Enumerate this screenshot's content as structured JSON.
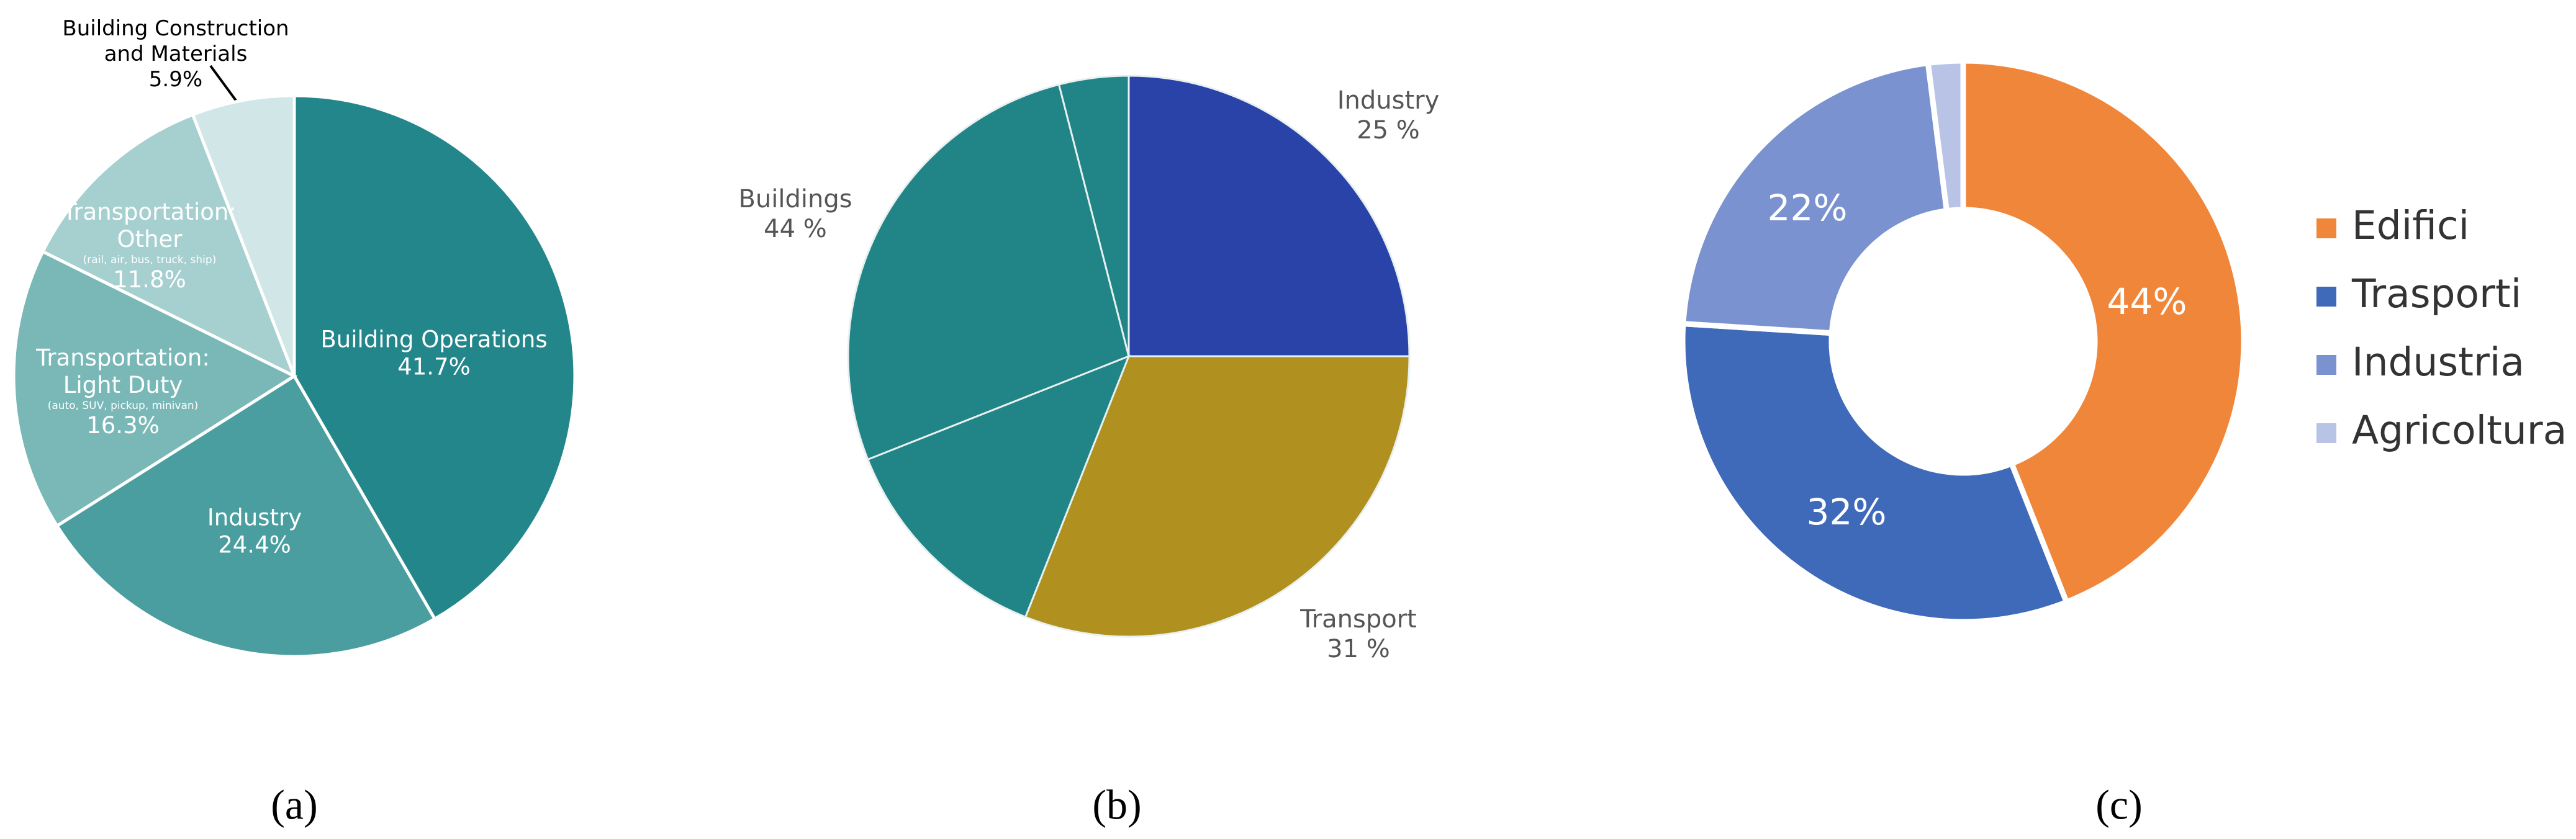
{
  "chart_data": [
    {
      "type": "pie",
      "caption": "(a)",
      "categories": [
        "Building Operations",
        "Industry",
        "Transportation:\nLight Duty",
        "Transportation:\nOther",
        "Building Construction\nand Materials"
      ],
      "sublabels": [
        null,
        null,
        "(auto, SUV, pickup, minivan)",
        "(rail, air, bus, truck, ship)",
        null
      ],
      "values": [
        41.7,
        24.4,
        16.3,
        11.8,
        5.9
      ],
      "value_labels": [
        "41.7%",
        "24.4%",
        "16.3%",
        "11.8%",
        "5.9%"
      ],
      "colors": [
        "#23868a",
        "#4a9e9f",
        "#7ab8b8",
        "#a6cfd0",
        "#d1e6e7"
      ]
    },
    {
      "type": "pie",
      "caption": "(b)",
      "categories": [
        "Industry",
        "Transport",
        "Buildings"
      ],
      "values": [
        25,
        31,
        44
      ],
      "value_labels": [
        "25 %",
        "31 %",
        "44 %"
      ],
      "sub_values": [
        null,
        null,
        [
          13,
          27,
          4
        ]
      ],
      "colors": [
        "#2a43a8",
        "#b0901f",
        "#218486"
      ]
    },
    {
      "type": "donut",
      "caption": "(c)",
      "categories": [
        "Edifici",
        "Trasporti",
        "Industria",
        "Agricoltura"
      ],
      "values": [
        44,
        32,
        22,
        2
      ],
      "value_labels": [
        "44%",
        "32%",
        "22%",
        null
      ],
      "colors": [
        "#f0863a",
        "#3f69b9",
        "#7b92d0",
        "#b8c3e6"
      ],
      "legend": "right"
    }
  ]
}
